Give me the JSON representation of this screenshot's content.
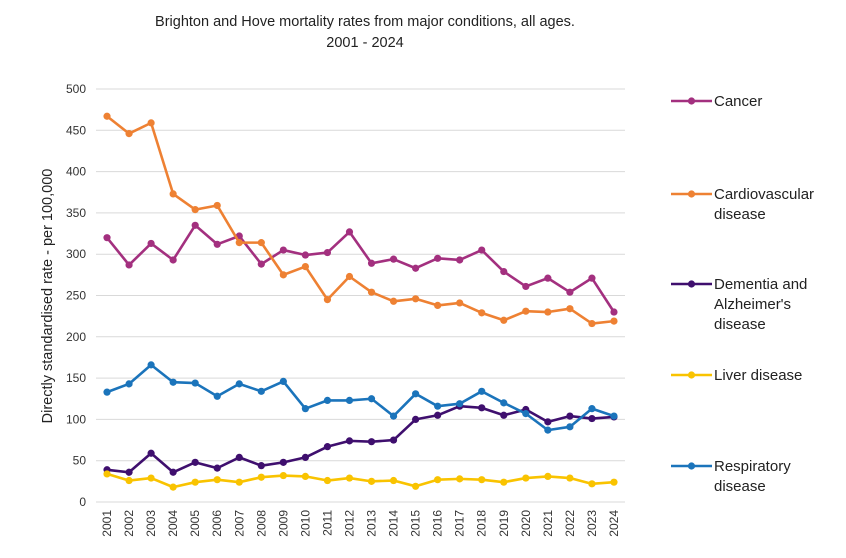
{
  "chart_data": {
    "type": "line",
    "title": "Brighton and Hove mortality rates from major conditions, all ages.",
    "subtitle": "2001 - 2024",
    "ylabel": "Directly standardised rate - per 100,000",
    "xlabel": "",
    "ylim": [
      0,
      500
    ],
    "yticks": [
      0,
      50,
      100,
      150,
      200,
      250,
      300,
      350,
      400,
      450,
      500
    ],
    "grid": true,
    "legend_position": "right",
    "x": [
      "2001",
      "2002",
      "2003",
      "2004",
      "2005",
      "2006",
      "2007",
      "2008",
      "2009",
      "2010",
      "2011",
      "2012",
      "2013",
      "2014",
      "2015",
      "2016",
      "2017",
      "2018",
      "2019",
      "2020",
      "2021",
      "2022",
      "2023",
      "2024"
    ],
    "series": [
      {
        "name": "Cancer",
        "legend_lines": [
          "Cancer"
        ],
        "color": "#a3307f",
        "values": [
          320,
          287,
          313,
          293,
          335,
          312,
          322,
          288,
          305,
          299,
          302,
          327,
          289,
          294,
          283,
          295,
          293,
          305,
          279,
          261,
          271,
          254,
          271,
          230
        ]
      },
      {
        "name": "Cardiovascular disease",
        "legend_lines": [
          "Cardiovascular",
          "disease"
        ],
        "color": "#ee8133",
        "values": [
          467,
          446,
          459,
          373,
          354,
          359,
          314,
          314,
          275,
          285,
          245,
          273,
          254,
          243,
          246,
          238,
          241,
          229,
          220,
          231,
          230,
          234,
          216,
          219
        ]
      },
      {
        "name": "Dementia and Alzheimer's disease",
        "legend_lines": [
          "Dementia and",
          "Alzheimer's",
          "disease"
        ],
        "color": "#3f0f6e",
        "values": [
          39,
          36,
          59,
          36,
          48,
          41,
          54,
          44,
          48,
          54,
          67,
          74,
          73,
          75,
          100,
          105,
          116,
          114,
          105,
          112,
          97,
          104,
          101,
          103
        ]
      },
      {
        "name": "Liver disease",
        "legend_lines": [
          "Liver disease"
        ],
        "color": "#f9c300",
        "values": [
          34,
          26,
          29,
          18,
          24,
          27,
          24,
          30,
          32,
          31,
          26,
          29,
          25,
          26,
          19,
          27,
          28,
          27,
          24,
          29,
          31,
          29,
          22,
          24
        ]
      },
      {
        "name": "Respiratory disease",
        "legend_lines": [
          "Respiratory",
          "disease"
        ],
        "color": "#1b74bb",
        "values": [
          133,
          143,
          166,
          145,
          144,
          128,
          143,
          134,
          146,
          113,
          123,
          123,
          125,
          104,
          131,
          116,
          119,
          134,
          120,
          107,
          87,
          91,
          113,
          104
        ]
      }
    ]
  }
}
